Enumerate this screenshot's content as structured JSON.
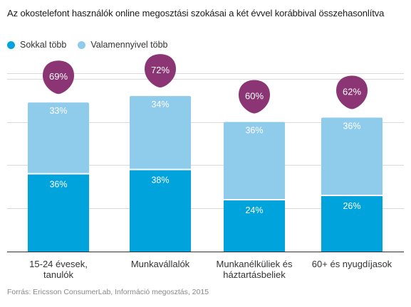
{
  "title": "Az okostelefont használók online megosztási szokásai a két évvel korábbival összehasonlítva",
  "source": "Forrás: Ericsson ConsumerLab, Információ megosztás, 2015",
  "colors": {
    "sokkal": "#00a3dc",
    "valamennyivel": "#8fcbeb",
    "total_badge": "#8b3575",
    "grid": "#d9d9d9",
    "axis": "#333333"
  },
  "chart_data": {
    "type": "bar",
    "stacked": true,
    "categories": [
      [
        "15-24 évesek,",
        "tanulók"
      ],
      [
        "Munkavállalók"
      ],
      [
        "Munkanélküliek és",
        "háztartásbeliek"
      ],
      [
        "60+ és nyugdíjasok"
      ]
    ],
    "series": [
      {
        "name": "Sokkal több",
        "values": [
          36,
          38,
          24,
          26
        ],
        "labels": [
          "36%",
          "38%",
          "24%",
          "26%"
        ]
      },
      {
        "name": "Valamennyivel több",
        "values": [
          33,
          34,
          36,
          36
        ],
        "labels": [
          "33%",
          "34%",
          "36%",
          "36%"
        ]
      }
    ],
    "totals": [
      "69%",
      "72%",
      "60%",
      "62%"
    ],
    "ylim": [
      0,
      100
    ],
    "grid": true,
    "legend": "top-left"
  }
}
